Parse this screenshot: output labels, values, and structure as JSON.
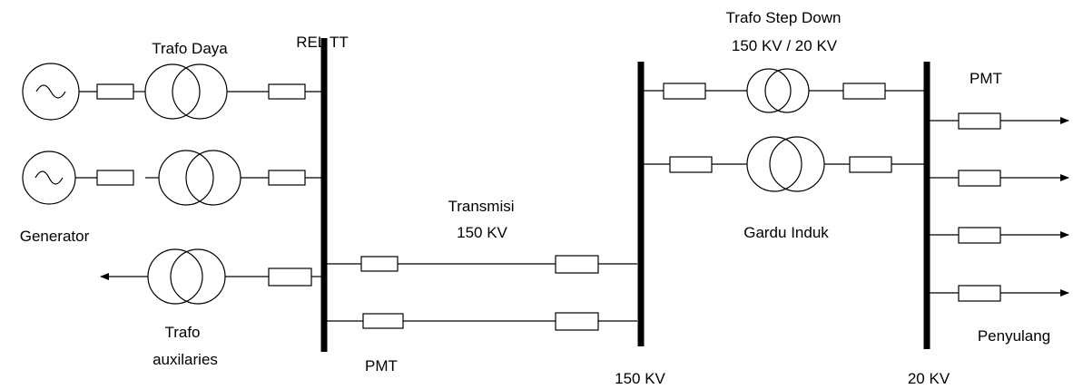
{
  "labels": {
    "trafo_daya": "Trafo Daya",
    "rel_tt": "REL TT",
    "trafo_step_down": "Trafo Step Down",
    "step_down_rating": "150 KV / 20 KV",
    "pmt_top": "PMT",
    "generator": "Generator",
    "transmisi": "Transmisi",
    "transmisi_kv": "150 KV",
    "gardu_induk": "Gardu Induk",
    "trafo": "Trafo",
    "auxilaries": "auxilaries",
    "pmt_bottom": "PMT",
    "penyulang": "Penyulang",
    "bus_150kv": "150 KV",
    "bus_20kv": "20 KV"
  }
}
